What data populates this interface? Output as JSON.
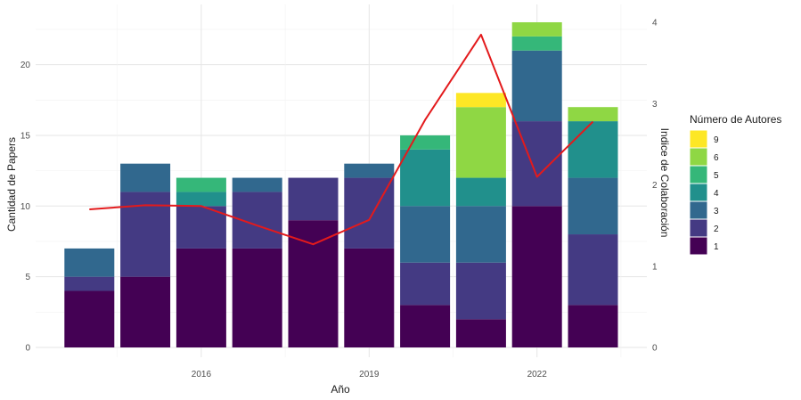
{
  "chart_data": {
    "type": "bar",
    "stacked": true,
    "x": [
      2014,
      2015,
      2016,
      2017,
      2018,
      2019,
      2020,
      2021,
      2022,
      2023
    ],
    "xlabel": "Año",
    "ylabel": "Cantidad de Papers",
    "y2label": "Indice de Colaboración",
    "x_ticks": [
      2016,
      2019,
      2022
    ],
    "y_ticks": [
      0,
      5,
      10,
      15,
      20
    ],
    "y2_ticks": [
      0,
      1,
      2,
      3,
      4
    ],
    "ylim": [
      0,
      23.5
    ],
    "y2lim": [
      0,
      4
    ],
    "xlim": [
      2013.4,
      2023.6
    ],
    "grid": true,
    "legend_title": "Número de Autores",
    "legend_position": "right",
    "series": [
      {
        "name": "1",
        "color": "#440154",
        "values": [
          4,
          5,
          7,
          7,
          9,
          7,
          3,
          2,
          10,
          3
        ]
      },
      {
        "name": "2",
        "color": "#443A83",
        "values": [
          1,
          6,
          3,
          4,
          3,
          5,
          3,
          4,
          6,
          5
        ]
      },
      {
        "name": "3",
        "color": "#31688E",
        "values": [
          2,
          2,
          0,
          1,
          0,
          1,
          4,
          4,
          5,
          4
        ]
      },
      {
        "name": "4",
        "color": "#21908C",
        "values": [
          0,
          0,
          1,
          0,
          0,
          0,
          4,
          2,
          0,
          4
        ]
      },
      {
        "name": "5",
        "color": "#35B779",
        "values": [
          0,
          0,
          1,
          0,
          0,
          0,
          1,
          0,
          1,
          0
        ]
      },
      {
        "name": "6",
        "color": "#8FD744",
        "values": [
          0,
          0,
          0,
          0,
          0,
          0,
          0,
          5,
          1,
          1
        ]
      },
      {
        "name": "9",
        "color": "#FDE725",
        "values": [
          0,
          0,
          0,
          0,
          0,
          0,
          0,
          1,
          0,
          0
        ]
      }
    ],
    "line": {
      "color": "#E31A1C",
      "axis": "secondary",
      "values": [
        1.7,
        1.75,
        1.74,
        1.5,
        1.27,
        1.57,
        2.8,
        3.85,
        2.1,
        2.78
      ]
    }
  }
}
